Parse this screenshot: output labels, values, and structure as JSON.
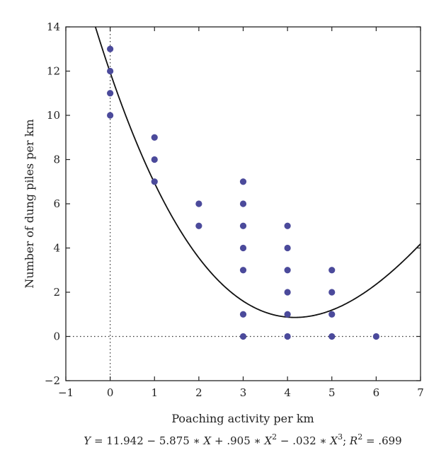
{
  "chart_data": {
    "type": "scatter",
    "xlabel": "Poaching activity per km",
    "ylabel": "Number of dung piles per km",
    "xlim": [
      -1,
      7
    ],
    "ylim": [
      -2,
      14
    ],
    "x_ticks": [
      -1,
      0,
      1,
      2,
      3,
      4,
      5,
      6,
      7
    ],
    "y_ticks": [
      -2,
      0,
      2,
      4,
      6,
      8,
      10,
      12,
      14
    ],
    "grid": false,
    "reference_lines": [
      {
        "orientation": "vertical",
        "value": 0,
        "style": "dotted"
      },
      {
        "orientation": "horizontal",
        "value": 0,
        "style": "dotted"
      }
    ],
    "points": [
      {
        "x": 0,
        "y": 13
      },
      {
        "x": 0,
        "y": 12
      },
      {
        "x": 0,
        "y": 11
      },
      {
        "x": 0,
        "y": 10
      },
      {
        "x": 1,
        "y": 9
      },
      {
        "x": 1,
        "y": 8
      },
      {
        "x": 1,
        "y": 7
      },
      {
        "x": 2,
        "y": 6
      },
      {
        "x": 2,
        "y": 5
      },
      {
        "x": 3,
        "y": 7
      },
      {
        "x": 3,
        "y": 6
      },
      {
        "x": 3,
        "y": 5
      },
      {
        "x": 3,
        "y": 4
      },
      {
        "x": 3,
        "y": 3
      },
      {
        "x": 3,
        "y": 1
      },
      {
        "x": 3,
        "y": 0
      },
      {
        "x": 4,
        "y": 5
      },
      {
        "x": 4,
        "y": 4
      },
      {
        "x": 4,
        "y": 3
      },
      {
        "x": 4,
        "y": 2
      },
      {
        "x": 4,
        "y": 1
      },
      {
        "x": 4,
        "y": 0
      },
      {
        "x": 5,
        "y": 3
      },
      {
        "x": 5,
        "y": 2
      },
      {
        "x": 5,
        "y": 1
      },
      {
        "x": 5,
        "y": 0
      },
      {
        "x": 6,
        "y": 0
      }
    ],
    "point_color": "#4b4a9b",
    "fit_curve": {
      "type": "cubic",
      "coefficients": [
        11.942,
        -5.875,
        0.905,
        -0.032
      ],
      "color": "#111111"
    },
    "equation": {
      "text_a": "Y",
      "text_b": " = 11.942 − 5.875 ∗ ",
      "text_c": "X",
      "text_d": " + .905 ∗ ",
      "text_e": "X",
      "sup_1": "2",
      "text_f": " − .032 ∗ ",
      "text_g": "X",
      "sup_2": "3",
      "text_h": "; ",
      "text_i": "R",
      "sup_3": "2",
      "text_j": " = .699"
    }
  }
}
